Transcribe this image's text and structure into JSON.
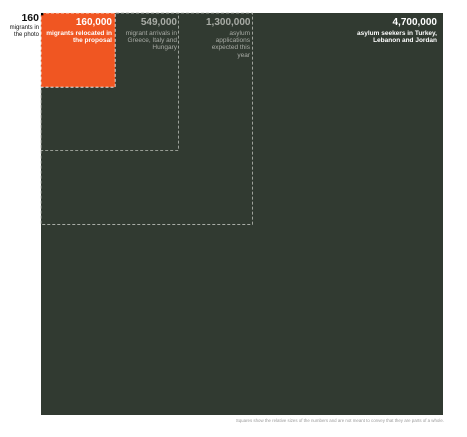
{
  "colors": {
    "background": "#ffffff",
    "large_square": "#313a31",
    "highlight_square": "#f05622",
    "tiny_square": "#000000",
    "dashed_outline": "#b9bcb6",
    "highlight_text": "#ffffff",
    "muted_text": "#a9aca6"
  },
  "chart_data": {
    "type": "area",
    "description_mode": "nested-squares",
    "items": [
      {
        "id": "asylum-seekers",
        "value": 4700000,
        "value_label": "4,700,000",
        "description": "asylum seekers in Turkey, Lebanon and Jordan",
        "style": "filled"
      },
      {
        "id": "asylum-applications",
        "value": 1300000,
        "value_label": "1,300,000",
        "description": "asylum applications expected this year",
        "style": "dashed"
      },
      {
        "id": "migrant-arrivals",
        "value": 549000,
        "value_label": "549,000",
        "description": "migrant arrivals in Greece, Italy and Hungary",
        "style": "dashed"
      },
      {
        "id": "migrants-relocated",
        "value": 160000,
        "value_label": "160,000",
        "description": "migrants relocated in the proposal",
        "style": "highlight"
      },
      {
        "id": "migrants-photo",
        "value": 160,
        "value_label": "160",
        "description": "migrants in the photo",
        "style": "tiny"
      }
    ],
    "footnote": "Squares show the relative sizes of the numbers and are not meant to convey that they are parts of a whole."
  }
}
